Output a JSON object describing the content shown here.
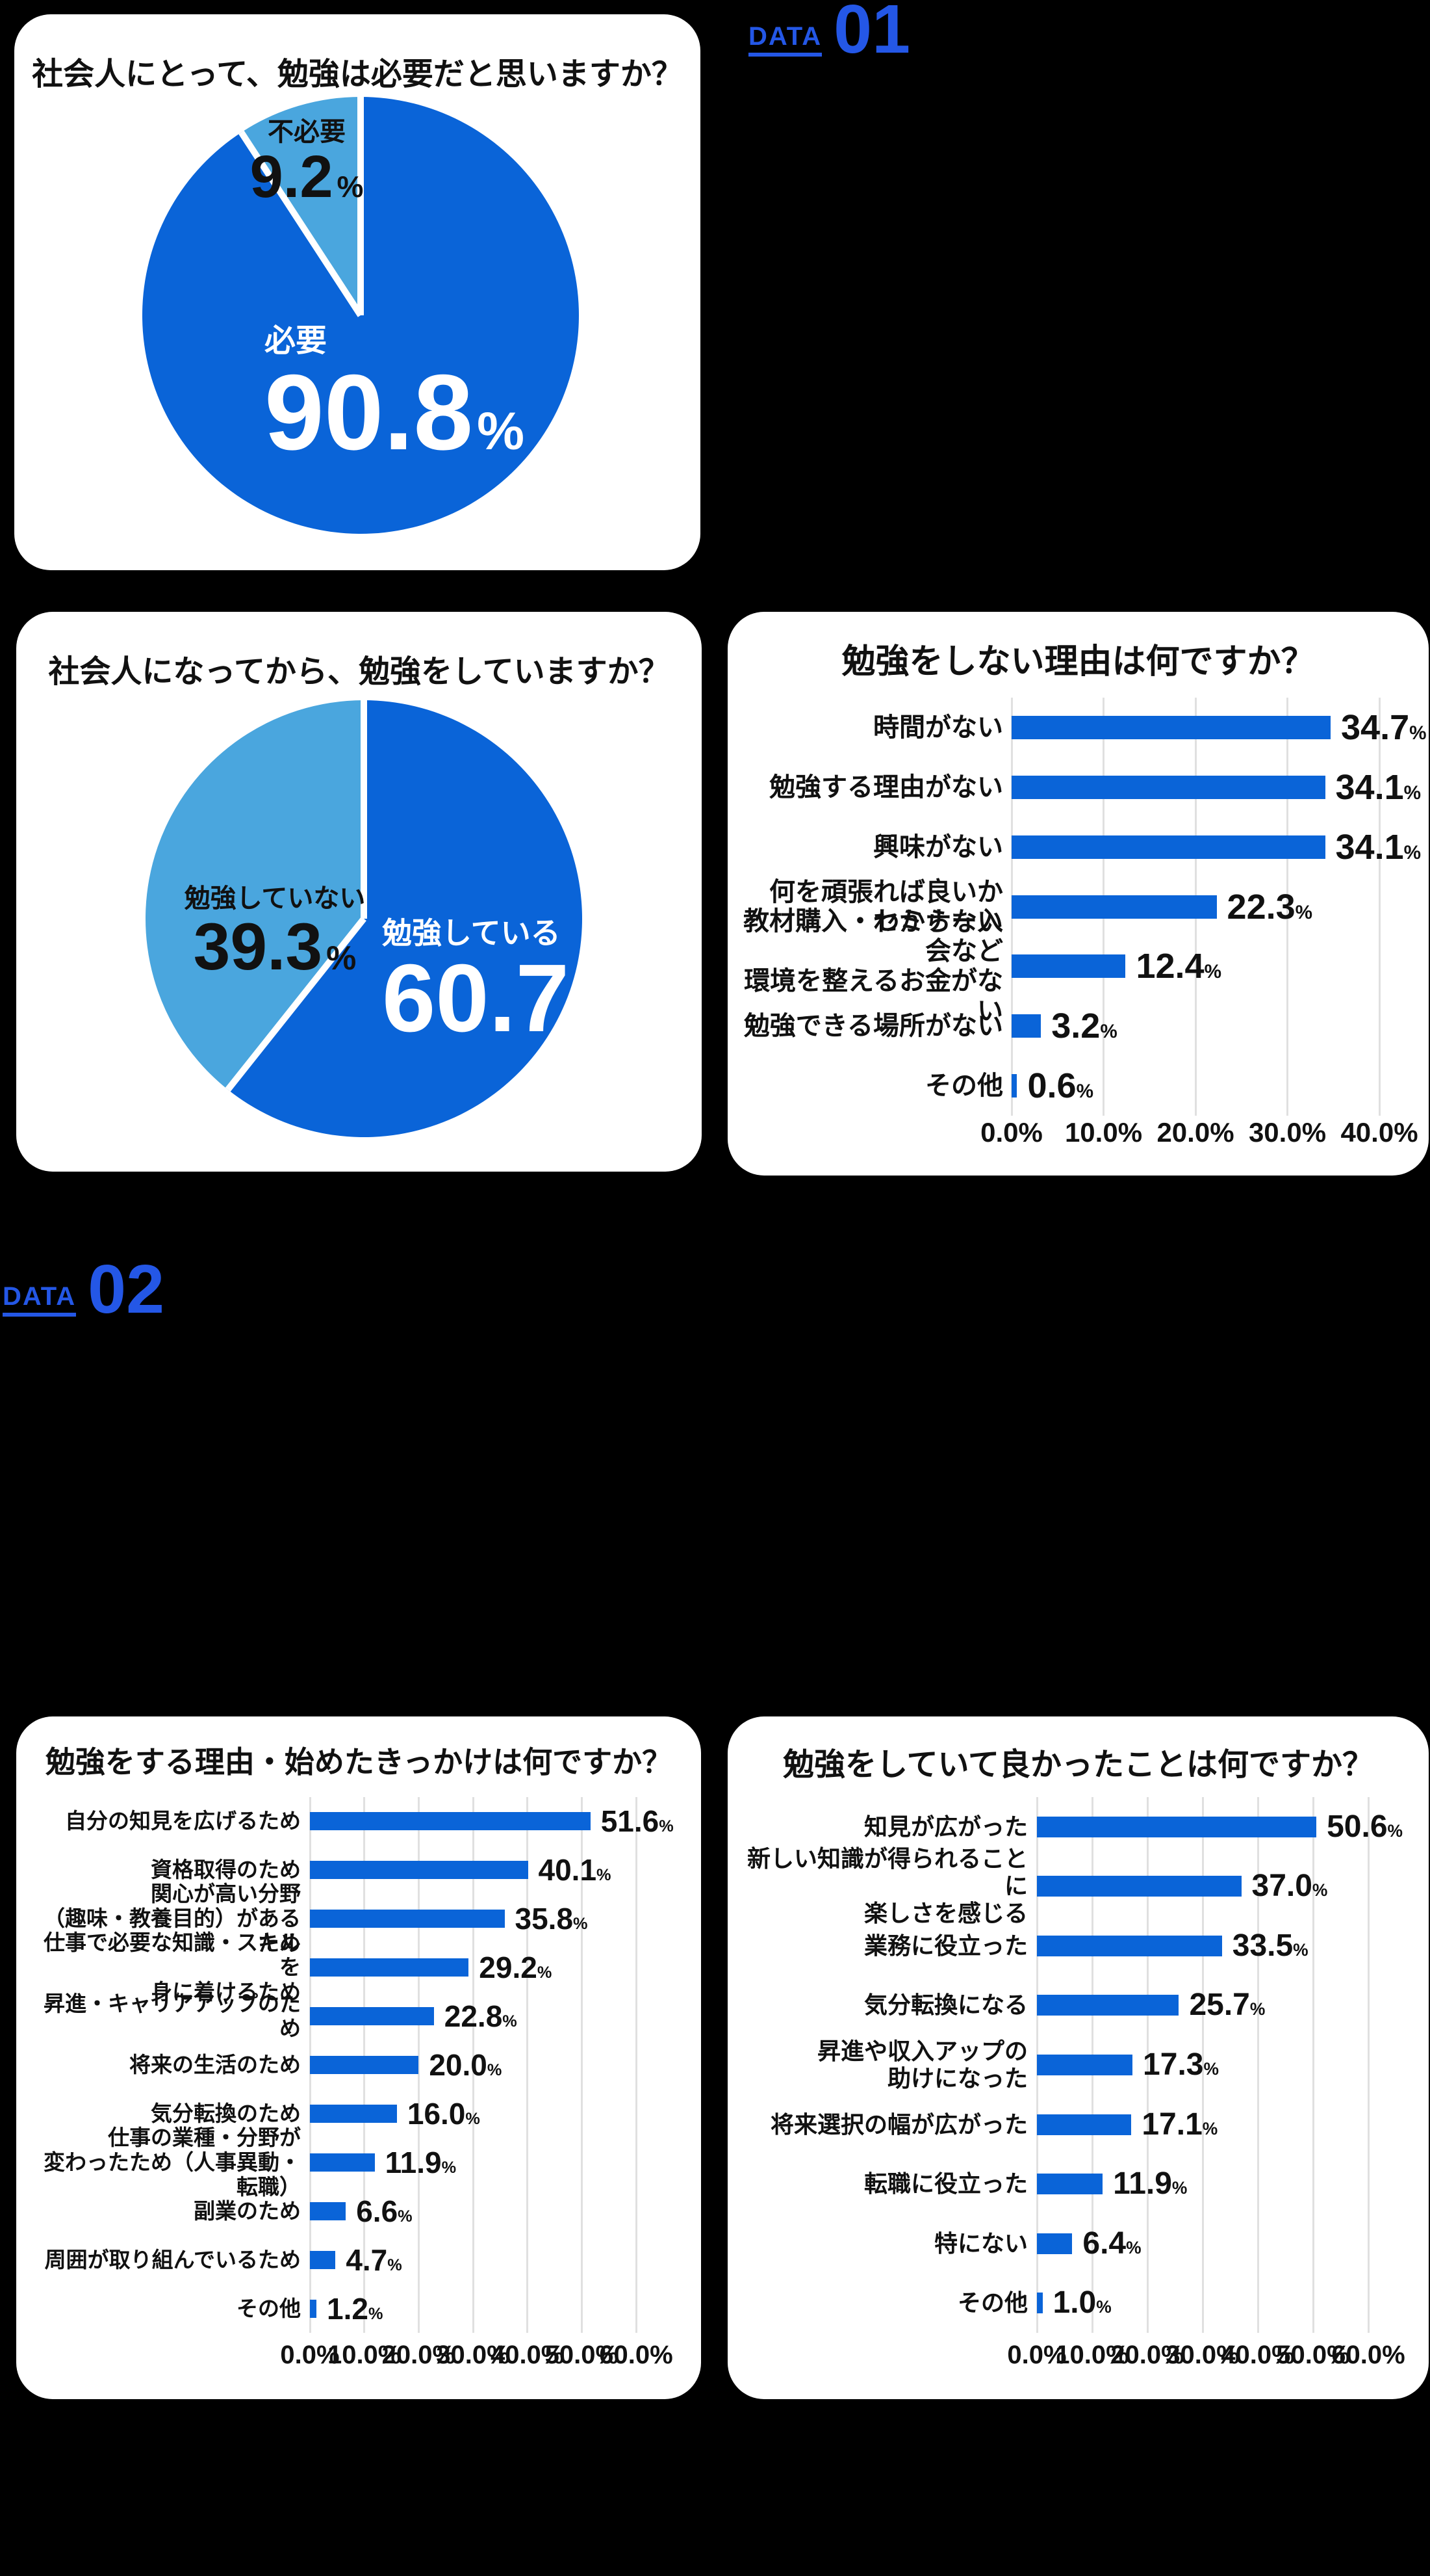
{
  "page": {
    "background": "#000000"
  },
  "colors": {
    "primary_blue": "#0a64d8",
    "light_blue": "#4aa6de",
    "section_label_blue": "#2457e6",
    "grid_line": "#e0e0e0",
    "card_background": "#ffffff",
    "text_dark": "#111111",
    "text_white": "#ffffff"
  },
  "unit": "%",
  "section_labels": [
    {
      "word": "DATA",
      "number": "01"
    },
    {
      "word": "DATA",
      "number": "02"
    }
  ],
  "chart_data": [
    {
      "type": "pie",
      "title": "社会人にとって、勉強は必要だと思いますか？",
      "legend_position": "inside",
      "slices": [
        {
          "label": "必要",
          "value": 90.8,
          "display": "90.8",
          "color": "#0a64d8"
        },
        {
          "label": "不必要",
          "value": 9.2,
          "display": "9.2",
          "color": "#4aa6de"
        }
      ]
    },
    {
      "type": "pie",
      "title": "社会人になってから、勉強をしていますか？",
      "legend_position": "inside",
      "slices": [
        {
          "label": "勉強している",
          "value": 60.7,
          "display": "60.7",
          "color": "#0a64d8"
        },
        {
          "label": "勉強していない",
          "value": 39.3,
          "display": "39.3",
          "color": "#4aa6de"
        }
      ]
    },
    {
      "type": "bar",
      "title": "勉強をしない理由は何ですか？",
      "orientation": "horizontal",
      "xlim": [
        0,
        40
      ],
      "grid": true,
      "tick_labels": [
        "0.0%",
        "10.0%",
        "20.0%",
        "30.0%",
        "40.0%"
      ],
      "categories": [
        [
          "時間がない"
        ],
        [
          "勉強する理由がない"
        ],
        [
          "興味がない"
        ],
        [
          "何を頑張れば良いか",
          "わからない"
        ],
        [
          "教材購入・セミナー入会など",
          "環境を整えるお金がない"
        ],
        [
          "勉強できる場所がない"
        ],
        [
          "その他"
        ]
      ],
      "values": [
        34.7,
        34.1,
        34.1,
        22.3,
        12.4,
        3.2,
        0.6
      ],
      "display_values": [
        "34.7",
        "34.1",
        "34.1",
        "22.3",
        "12.4",
        "3.2",
        "0.6"
      ]
    },
    {
      "type": "bar",
      "title": "勉強をする理由・始めたきっかけは何ですか？",
      "orientation": "horizontal",
      "xlim": [
        0,
        60
      ],
      "grid": true,
      "tick_labels": [
        "0.0%",
        "10.0%",
        "20.0%",
        "30.0%",
        "40.0%",
        "50.0%",
        "60.0%"
      ],
      "categories": [
        [
          "自分の知見を広げるため"
        ],
        [
          "資格取得のため"
        ],
        [
          "関心が高い分野",
          "（趣味・教養目的）があるため"
        ],
        [
          "仕事で必要な知識・スキルを",
          "身に着けるため"
        ],
        [
          "昇進・キャリアアップのため"
        ],
        [
          "将来の生活のため"
        ],
        [
          "気分転換のため"
        ],
        [
          "仕事の業種・分野が",
          "変わったため（人事異動・転職）"
        ],
        [
          "副業のため"
        ],
        [
          "周囲が取り組んでいるため"
        ],
        [
          "その他"
        ]
      ],
      "values": [
        51.6,
        40.1,
        35.8,
        29.2,
        22.8,
        20.0,
        16.0,
        11.9,
        6.6,
        4.7,
        1.2
      ],
      "display_values": [
        "51.6",
        "40.1",
        "35.8",
        "29.2",
        "22.8",
        "20.0",
        "16.0",
        "11.9",
        "6.6",
        "4.7",
        "1.2"
      ]
    },
    {
      "type": "bar",
      "title": "勉強をしていて良かったことは何ですか？",
      "orientation": "horizontal",
      "xlim": [
        0,
        60
      ],
      "grid": true,
      "tick_labels": [
        "0.0%",
        "10.0%",
        "20.0%",
        "30.0%",
        "40.0%",
        "50.0%",
        "60.0%"
      ],
      "categories": [
        [
          "知見が広がった"
        ],
        [
          "新しい知識が得られることに",
          "楽しさを感じる"
        ],
        [
          "業務に役立った"
        ],
        [
          "気分転換になる"
        ],
        [
          "昇進や収入アップの",
          "助けになった"
        ],
        [
          "将来選択の幅が広がった"
        ],
        [
          "転職に役立った"
        ],
        [
          "特にない"
        ],
        [
          "その他"
        ]
      ],
      "values": [
        50.6,
        37.0,
        33.5,
        25.7,
        17.3,
        17.1,
        11.9,
        6.4,
        1.0
      ],
      "display_values": [
        "50.6",
        "37.0",
        "33.5",
        "25.7",
        "17.3",
        "17.1",
        "11.9",
        "6.4",
        "1.0"
      ]
    }
  ]
}
